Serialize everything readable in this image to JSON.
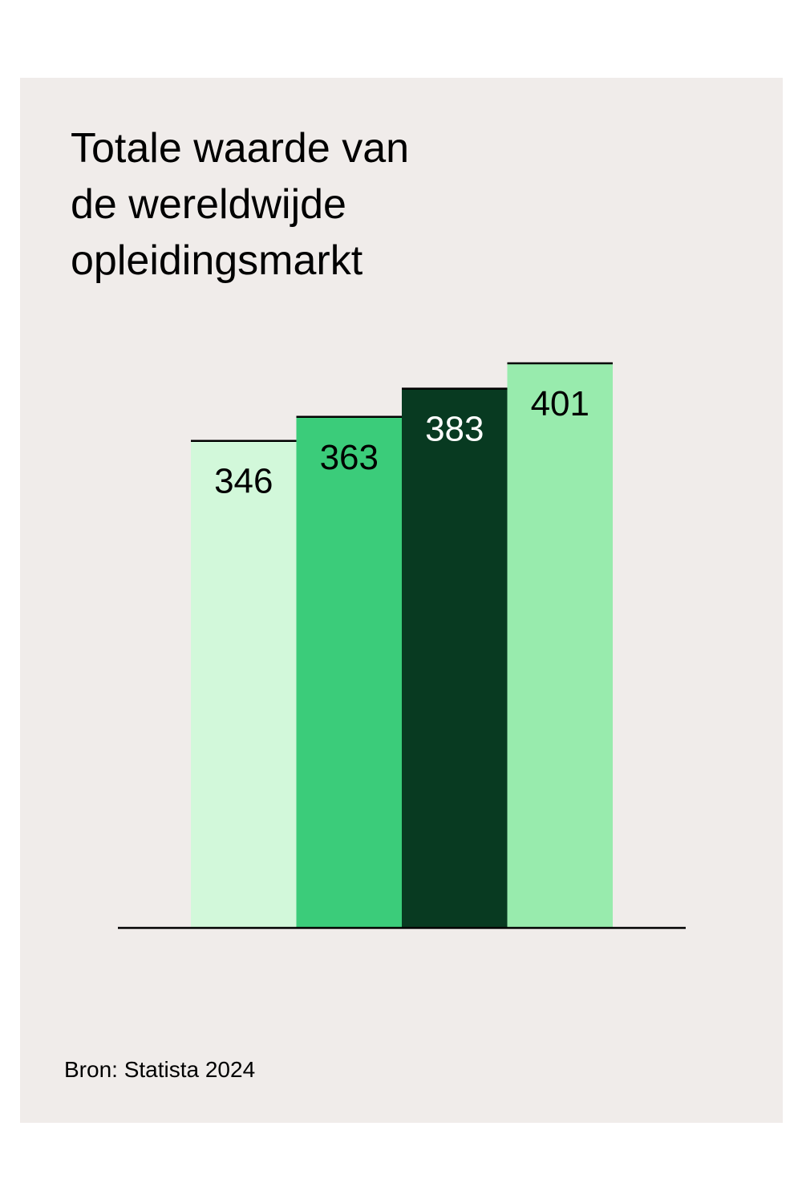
{
  "title_lines": [
    "Totale waarde van",
    "de wereldwijde",
    "opleidingsmarkt"
  ],
  "source": "Bron: Statista 2024",
  "colors": {
    "background": "#f0ecea",
    "bar_1": "#d2f8da",
    "bar_2": "#3bcc7a",
    "bar_3": "#083a21",
    "bar_4": "#98ebad",
    "label_dark": "#000000",
    "label_light": "#ffffff",
    "axis": "#000000"
  },
  "chart_data": {
    "type": "bar",
    "categories": [
      "",
      "",
      "",
      ""
    ],
    "values": [
      346,
      363,
      383,
      401
    ],
    "data_labels": [
      "346",
      "363",
      "383",
      "401"
    ],
    "title": "Totale waarde van de wereldwijde opleidingsmarkt",
    "xlabel": "",
    "ylabel": "",
    "ylim": [
      0,
      401
    ],
    "grid": false,
    "legend": "none"
  }
}
